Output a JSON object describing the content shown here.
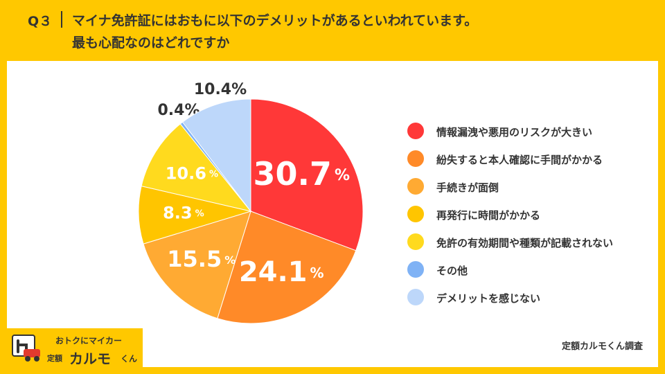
{
  "header": {
    "q_label": "Q３",
    "question_line1": "マイナ免許証にはおもに以下のデメリットがあるといわれています。",
    "question_line2": "最も心配なのはどれですか"
  },
  "chart_data": {
    "type": "pie",
    "categories": [
      "情報漏洩や悪用のリスクが大きい",
      "紛失すると本人確認に手間がかかる",
      "手続きが面倒",
      "再発行に時間がかかる",
      "免許の有効期間や種類が記載されない",
      "その他",
      "デメリットを感じない"
    ],
    "values": [
      30.7,
      24.1,
      15.5,
      8.3,
      10.6,
      0.4,
      10.4
    ],
    "value_labels": [
      "30.7",
      "24.1",
      "15.5",
      "8.3",
      "10.6",
      "0.4",
      "10.4"
    ],
    "unit": "%",
    "colors": [
      "#FF3838",
      "#FF8A28",
      "#FFAA33",
      "#FFC500",
      "#FFDA1E",
      "#7FB2F5",
      "#BDD7FA"
    ],
    "start_angle_deg": 0,
    "direction": "clockwise",
    "legend_position": "right"
  },
  "footer": {
    "credit": "定額カルモくん調査",
    "logo_top": "おトクにマイカー",
    "logo_small": "定額",
    "logo_main": "カルモ",
    "logo_sub": "くん"
  }
}
